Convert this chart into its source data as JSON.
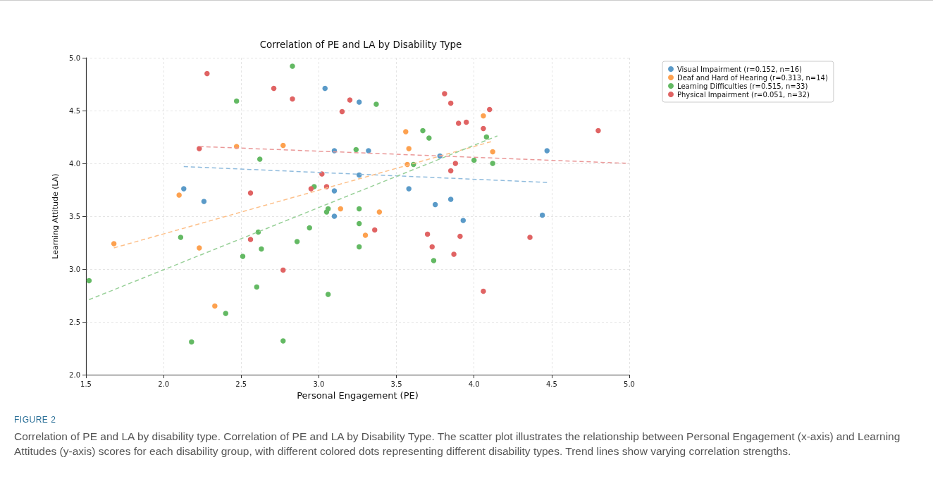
{
  "chart_data": {
    "type": "scatter",
    "title": "Correlation of PE and LA by Disability Type",
    "xlabel": "Personal Engagement (PE)",
    "ylabel": "Learning Attitude (LA)",
    "xlim": [
      1.5,
      5.0
    ],
    "ylim": [
      2.0,
      5.0
    ],
    "xticks": [
      1.5,
      {
        "value": 2,
        "label": "2.0"
      },
      2.5,
      {
        "value": 3,
        "label": "3.0"
      },
      3.5,
      {
        "value": 4,
        "label": "4.0"
      },
      4.5,
      {
        "value": 5,
        "label": "5.0"
      }
    ],
    "yticks": [
      {
        "value": 2,
        "label": "2.0"
      },
      2.5,
      {
        "value": 3,
        "label": "3.0"
      },
      3.5,
      {
        "value": 4,
        "label": "4.0"
      },
      4.5,
      {
        "value": 5,
        "label": "5.0"
      }
    ],
    "grid": true,
    "legend": "top right",
    "marker": "circle",
    "series": [
      {
        "name": "Visual Impairment (r=0.152, n=16)",
        "color": "#5a9ac8",
        "x": [
          2.13,
          2.26,
          3.04,
          3.26,
          3.1,
          3.32,
          3.26,
          3.1,
          3.1,
          3.58,
          3.78,
          3.75,
          3.85,
          3.93,
          4.44,
          4.47
        ],
        "values": [
          3.76,
          3.64,
          4.71,
          4.58,
          4.12,
          4.12,
          3.89,
          3.74,
          3.5,
          3.76,
          4.07,
          3.61,
          3.66,
          3.46,
          3.51,
          4.12
        ]
      },
      {
        "name": "Deaf and Hard of Hearing (r=0.313, n=14)",
        "color": "#fda14f",
        "x": [
          1.68,
          2.1,
          2.23,
          2.33,
          2.47,
          2.77,
          3.14,
          3.3,
          3.39,
          3.56,
          3.58,
          3.57,
          4.06,
          4.12
        ],
        "values": [
          3.24,
          3.7,
          3.2,
          2.65,
          4.16,
          4.17,
          3.57,
          3.32,
          3.54,
          4.3,
          4.14,
          3.99,
          4.45,
          4.11
        ]
      },
      {
        "name": "Learning Difficulties (r=0.515, n=33)",
        "color": "#63b963",
        "x": [
          1.52,
          2.11,
          2.18,
          2.4,
          2.47,
          2.51,
          2.6,
          2.61,
          2.62,
          2.63,
          2.77,
          2.83,
          2.86,
          2.94,
          2.97,
          3.05,
          3.06,
          3.06,
          3.24,
          3.26,
          3.26,
          3.26,
          3.37,
          3.61,
          3.67,
          3.71,
          3.74,
          4.0,
          4.08,
          4.12
        ],
        "values": [
          2.89,
          3.3,
          2.31,
          2.58,
          4.59,
          3.12,
          2.83,
          3.35,
          4.04,
          3.19,
          2.32,
          4.92,
          3.26,
          3.39,
          3.78,
          3.54,
          3.57,
          2.76,
          4.13,
          3.57,
          3.43,
          3.21,
          4.56,
          3.99,
          4.31,
          4.24,
          3.08,
          4.03,
          4.25,
          4.0
        ]
      },
      {
        "name": "Physical Impairment (r=0.051, n=32)",
        "color": "#e06363",
        "x": [
          2.23,
          2.28,
          2.56,
          2.56,
          2.71,
          2.77,
          2.83,
          2.95,
          3.02,
          3.05,
          3.15,
          3.2,
          3.36,
          3.7,
          3.73,
          3.81,
          3.85,
          3.85,
          3.87,
          3.88,
          3.9,
          3.91,
          3.95,
          4.06,
          4.06,
          4.1,
          4.36,
          4.8
        ],
        "values": [
          4.14,
          4.85,
          3.72,
          3.28,
          4.71,
          2.99,
          4.61,
          3.76,
          3.9,
          3.78,
          4.49,
          4.6,
          3.37,
          3.33,
          3.21,
          4.66,
          4.57,
          3.93,
          3.14,
          4.0,
          4.38,
          3.31,
          4.39,
          4.33,
          2.79,
          4.51,
          3.3,
          4.31
        ]
      },
      {
        "type": "line",
        "marker": "none",
        "line_style": "dashed",
        "color": "#8fbbdd",
        "x": [
          2.13,
          4.47
        ],
        "values": [
          3.97,
          3.82
        ]
      },
      {
        "type": "line",
        "marker": "none",
        "line_style": "dashed",
        "color": "#fdc08a",
        "x": [
          1.68,
          4.12
        ],
        "values": [
          3.2,
          4.21
        ]
      },
      {
        "type": "line",
        "marker": "none",
        "line_style": "dashed",
        "color": "#98d098",
        "x": [
          1.52,
          4.15
        ],
        "values": [
          2.71,
          4.26
        ]
      },
      {
        "type": "line",
        "marker": "none",
        "line_style": "dashed",
        "color": "#ea9898",
        "x": [
          2.23,
          5.0
        ],
        "values": [
          4.16,
          4.0
        ]
      }
    ],
    "annotations": [
      "FIGURE 2",
      "Correlation of PE and LA by disability type. Correlation of PE and LA by Disability Type. The scatter plot illustrates the relationship between Personal Engagement (x-axis) and Learning Attitudes (y-axis) scores for each disability group, with different colored dots representing different disability types. Trend lines show varying correlation strengths."
    ]
  }
}
